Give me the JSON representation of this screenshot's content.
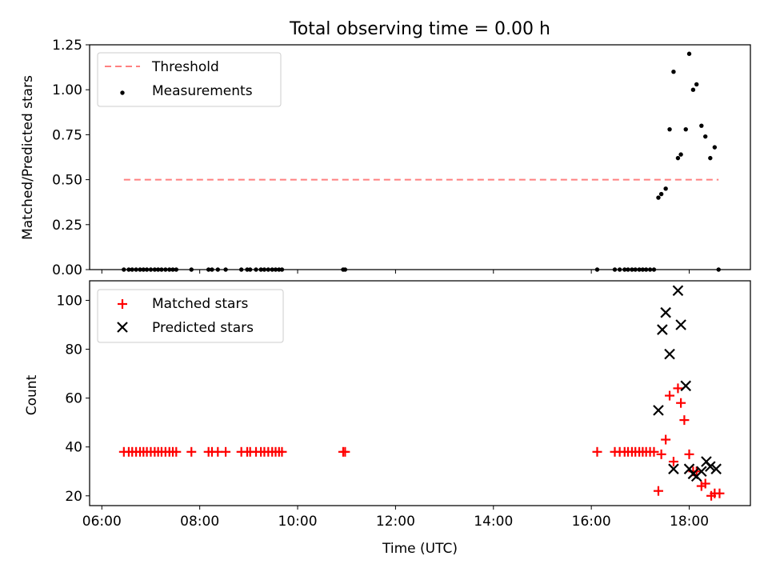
{
  "title": "Total observing time = 0.00 h",
  "colors": {
    "threshold": "#ff8080",
    "measurement": "#000000",
    "matched": "#ff0000",
    "predicted": "#000000"
  },
  "chart_data": [
    {
      "type": "scatter",
      "ylabel": "Matched/Predicted stars",
      "ylim": [
        0,
        1.25
      ],
      "yticks": [
        "0.00",
        "0.25",
        "0.50",
        "0.75",
        "1.00",
        "1.25"
      ],
      "ytick_values": [
        0,
        0.25,
        0.5,
        0.75,
        1.0,
        1.25
      ],
      "x_axis": "time (UTC), hours",
      "xlim": [
        5.75,
        19.25
      ],
      "legend": {
        "position": "top-left",
        "entries": [
          "Threshold",
          "Measurements"
        ]
      },
      "threshold": {
        "name": "Threshold",
        "x": [
          6.45,
          18.6
        ],
        "y": 0.5
      },
      "series": [
        {
          "name": "Measurements",
          "x": [
            6.45,
            6.55,
            6.62,
            6.7,
            6.78,
            6.85,
            6.92,
            7.0,
            7.08,
            7.15,
            7.22,
            7.3,
            7.38,
            7.45,
            7.52,
            7.83,
            8.18,
            8.25,
            8.37,
            8.53,
            8.85,
            8.97,
            9.03,
            9.15,
            9.25,
            9.32,
            9.4,
            9.48,
            9.55,
            9.62,
            9.68,
            10.93,
            10.97,
            16.12,
            16.48,
            16.58,
            16.68,
            16.75,
            16.83,
            16.9,
            16.98,
            17.05,
            17.12,
            17.2,
            17.28,
            17.37,
            17.43,
            17.52,
            17.6,
            17.68,
            17.77,
            17.83,
            17.93,
            18.0,
            18.08,
            18.15,
            18.25,
            18.33,
            18.43,
            18.52,
            18.6
          ],
          "y": [
            0,
            0,
            0,
            0,
            0,
            0,
            0,
            0,
            0,
            0,
            0,
            0,
            0,
            0,
            0,
            0,
            0,
            0,
            0,
            0,
            0,
            0,
            0,
            0,
            0,
            0,
            0,
            0,
            0,
            0,
            0,
            0,
            0,
            0,
            0,
            0,
            0,
            0,
            0,
            0,
            0,
            0,
            0,
            0,
            0,
            0.4,
            0.42,
            0.45,
            0.78,
            1.1,
            0.62,
            0.64,
            0.78,
            1.2,
            1.0,
            1.03,
            0.8,
            0.74,
            0.62,
            0.68,
            0
          ]
        }
      ]
    },
    {
      "type": "scatter",
      "ylabel": "Count",
      "xlabel": "Time (UTC)",
      "ylim": [
        16,
        108
      ],
      "yticks": [
        "20",
        "40",
        "60",
        "80",
        "100"
      ],
      "ytick_values": [
        20,
        40,
        60,
        80,
        100
      ],
      "xlim": [
        5.75,
        19.25
      ],
      "xticks": [
        "06:00",
        "08:00",
        "10:00",
        "12:00",
        "14:00",
        "16:00",
        "18:00"
      ],
      "xtick_values": [
        6,
        8,
        10,
        12,
        14,
        16,
        18
      ],
      "legend": {
        "position": "top-left",
        "entries": [
          "Matched stars",
          "Predicted stars"
        ]
      },
      "series": [
        {
          "name": "Matched stars",
          "marker": "plus",
          "x": [
            6.45,
            6.55,
            6.62,
            6.7,
            6.78,
            6.85,
            6.92,
            7.0,
            7.08,
            7.15,
            7.22,
            7.3,
            7.38,
            7.45,
            7.52,
            7.83,
            8.18,
            8.25,
            8.37,
            8.53,
            8.85,
            8.97,
            9.03,
            9.15,
            9.25,
            9.32,
            9.4,
            9.48,
            9.55,
            9.62,
            9.68,
            10.93,
            10.97,
            16.12,
            16.48,
            16.58,
            16.68,
            16.75,
            16.83,
            16.9,
            16.98,
            17.05,
            17.12,
            17.2,
            17.28,
            17.37,
            17.43,
            17.52,
            17.6,
            17.68,
            17.77,
            17.83,
            17.9,
            18.0,
            18.08,
            18.15,
            18.25,
            18.33,
            18.45,
            18.52,
            18.62
          ],
          "y": [
            38,
            38,
            38,
            38,
            38,
            38,
            38,
            38,
            38,
            38,
            38,
            38,
            38,
            38,
            38,
            38,
            38,
            38,
            38,
            38,
            38,
            38,
            38,
            38,
            38,
            38,
            38,
            38,
            38,
            38,
            38,
            38,
            38,
            38,
            38,
            38,
            38,
            38,
            38,
            38,
            38,
            38,
            38,
            38,
            38,
            22,
            37,
            43,
            61,
            34,
            64,
            58,
            51,
            37,
            30,
            30,
            24,
            25,
            20,
            21,
            21
          ]
        },
        {
          "name": "Predicted stars",
          "marker": "x",
          "x": [
            17.37,
            17.45,
            17.52,
            17.6,
            17.68,
            17.77,
            17.83,
            17.93,
            18.0,
            18.08,
            18.15,
            18.25,
            18.35,
            18.43,
            18.55
          ],
          "y": [
            55,
            88,
            95,
            78,
            31,
            104,
            90,
            65,
            31,
            29,
            28,
            30,
            34,
            32,
            31
          ]
        }
      ]
    }
  ]
}
